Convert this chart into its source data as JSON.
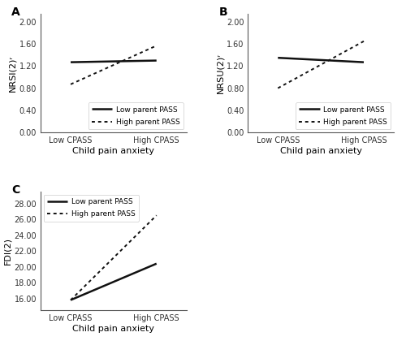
{
  "panel_A": {
    "label": "A",
    "ylabel": "NRSI(2)ʳ",
    "xlabel": "Child pain anxiety",
    "xtick_labels": [
      "Low CPASS",
      "High CPASS"
    ],
    "yticks": [
      0.0,
      0.4,
      0.8,
      1.2,
      1.6,
      2.0
    ],
    "ylim": [
      0.0,
      2.15
    ],
    "low_pass": [
      1.27,
      1.3
    ],
    "high_pass": [
      0.87,
      1.57
    ],
    "legend_loc": "lower right"
  },
  "panel_B": {
    "label": "B",
    "ylabel": "NRSU(2)ʳ",
    "xlabel": "Child pain anxiety",
    "xtick_labels": [
      "Low CPASS",
      "High CPASS"
    ],
    "yticks": [
      0.0,
      0.4,
      0.8,
      1.2,
      1.6,
      2.0
    ],
    "ylim": [
      0.0,
      2.15
    ],
    "low_pass": [
      1.35,
      1.27
    ],
    "high_pass": [
      0.8,
      1.65
    ],
    "legend_loc": "lower right"
  },
  "panel_C": {
    "label": "C",
    "ylabel": "FDI(2)",
    "xlabel": "Child pain anxiety",
    "xtick_labels": [
      "Low CPASS",
      "High CPASS"
    ],
    "yticks": [
      16.0,
      18.0,
      20.0,
      22.0,
      24.0,
      26.0,
      28.0
    ],
    "ylim": [
      14.5,
      29.5
    ],
    "low_pass": [
      15.8,
      20.4
    ],
    "high_pass": [
      15.8,
      26.5
    ],
    "legend_loc": "upper left"
  },
  "low_color": "#111111",
  "high_color": "#111111",
  "low_lw": 1.8,
  "high_lw": 1.4,
  "bg_color": "#ffffff",
  "font_size": 7.0,
  "label_fontsize": 8.0,
  "title_fontsize": 10,
  "legend_fontsize": 6.5
}
